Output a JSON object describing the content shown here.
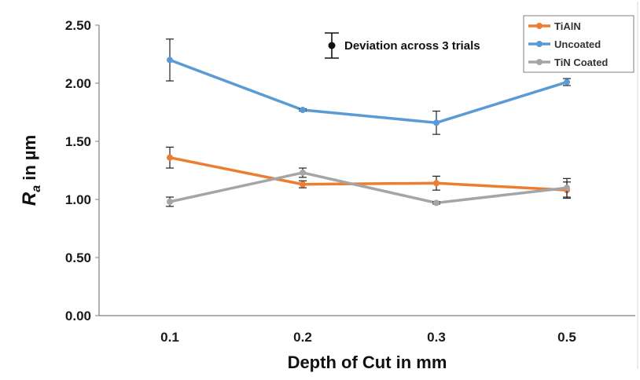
{
  "chart_data": {
    "type": "line",
    "categories": [
      "0.1",
      "0.2",
      "0.3",
      "0.5"
    ],
    "xlabel": "Depth of Cut in mm",
    "ylabel": {
      "symbol": "R",
      "subscript": "a",
      "rest": " in µm"
    },
    "ylim": [
      0,
      2.5
    ],
    "yticks": [
      0.0,
      0.5,
      1.0,
      1.5,
      2.0,
      2.5
    ],
    "ytick_labels": [
      "0.00",
      "0.50",
      "1.00",
      "1.50",
      "2.00",
      "2.50"
    ],
    "grid": false,
    "legend_position": "top-right",
    "annotation": "Deviation across 3 trials",
    "series": [
      {
        "name": "TiAlN",
        "color": "#ED7D31",
        "values": [
          1.36,
          1.13,
          1.14,
          1.08
        ],
        "errors": [
          0.09,
          0.03,
          0.06,
          0.07
        ]
      },
      {
        "name": "Uncoated",
        "color": "#5B9BD5",
        "values": [
          2.2,
          1.77,
          1.66,
          2.01
        ],
        "errors": [
          0.18,
          0.01,
          0.1,
          0.03
        ]
      },
      {
        "name": "TiN Coated",
        "color": "#A5A5A5",
        "values": [
          0.98,
          1.23,
          0.97,
          1.1
        ],
        "errors": [
          0.04,
          0.04,
          0.01,
          0.08
        ]
      }
    ]
  }
}
